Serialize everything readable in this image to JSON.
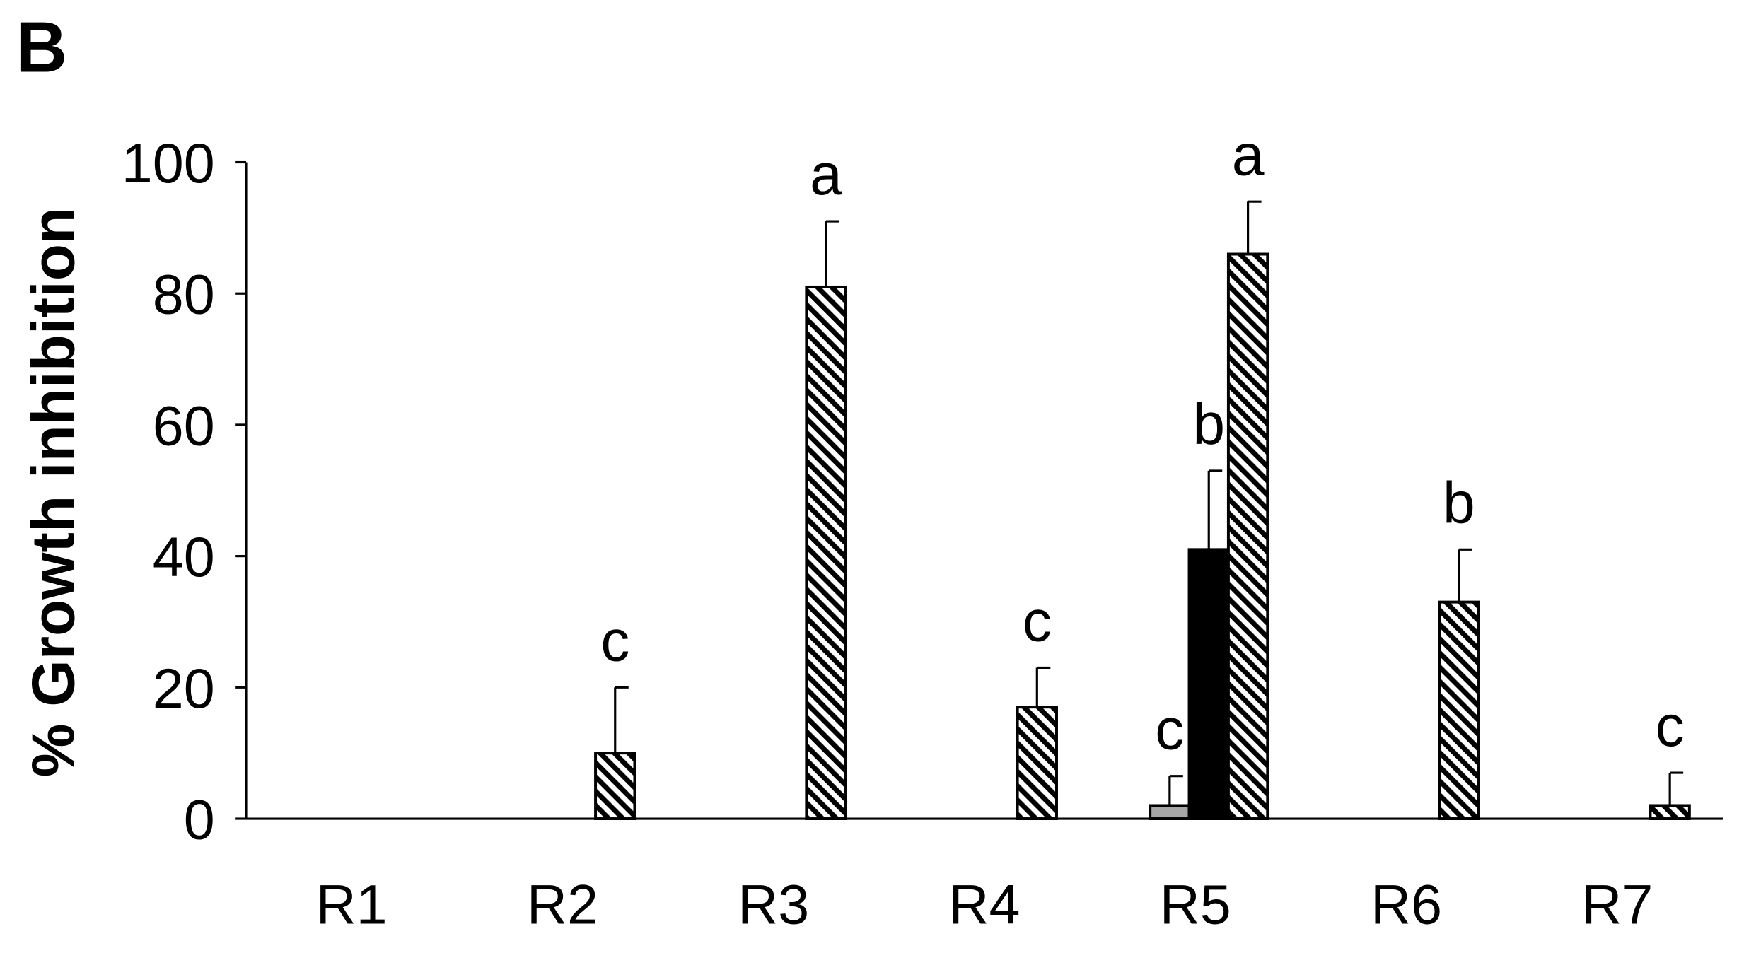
{
  "chart_data": {
    "type": "bar",
    "title": "B",
    "ylabel": "% Growth inhibition",
    "categories": [
      "R1",
      "R2",
      "R3",
      "R4",
      "R5",
      "R6",
      "R7"
    ],
    "series": [
      {
        "color": "#a6a6a6",
        "hatched": false,
        "values": [
          0,
          0,
          0,
          0,
          2,
          0,
          0
        ],
        "errors": [
          null,
          null,
          null,
          null,
          4.5,
          null,
          null
        ],
        "letters": [
          null,
          null,
          null,
          null,
          "c",
          null,
          null
        ]
      },
      {
        "color": "#000000",
        "hatched": false,
        "values": [
          0,
          0,
          0,
          0,
          41,
          0,
          0
        ],
        "errors": [
          null,
          null,
          null,
          null,
          12,
          null,
          null
        ],
        "letters": [
          null,
          null,
          null,
          null,
          "b",
          null,
          null
        ]
      },
      {
        "color": "#000000",
        "hatched": true,
        "values": [
          0,
          10,
          81,
          17,
          86,
          33,
          2
        ],
        "errors": [
          null,
          10,
          10,
          6,
          8,
          8,
          5
        ],
        "letters": [
          null,
          "c",
          "a",
          "c",
          "a",
          "b",
          "c"
        ]
      }
    ],
    "ylim": [
      0,
      100
    ],
    "yticks": [
      0,
      20,
      40,
      60,
      80,
      100
    ],
    "grid": false
  }
}
